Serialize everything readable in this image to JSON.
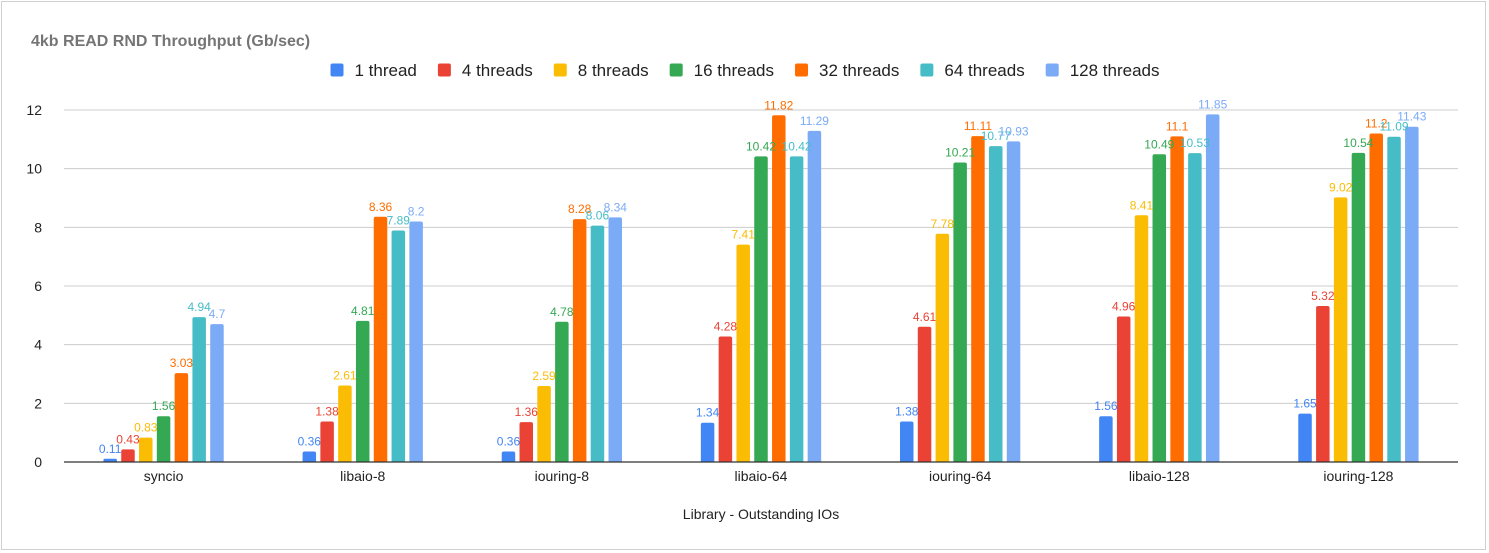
{
  "chart_data": {
    "type": "bar",
    "title": "4kb READ RND  Throughput (Gb/sec)",
    "xlabel": "Library - Outstanding IOs",
    "ylabel": "",
    "ylim": [
      0,
      12
    ],
    "yticks": [
      0,
      2,
      4,
      6,
      8,
      10,
      12
    ],
    "grid": true,
    "legend_position": "top",
    "categories": [
      "syncio",
      "libaio-8",
      "iouring-8",
      "libaio-64",
      "iouring-64",
      "libaio-128",
      "iouring-128"
    ],
    "series": [
      {
        "name": "1 thread",
        "color": "#4285f4",
        "values": [
          0.11,
          0.36,
          0.36,
          1.34,
          1.38,
          1.56,
          1.65
        ],
        "labels": [
          "0.11",
          "0.36",
          "0.36",
          "1.34",
          "1.38",
          "1.56",
          "1.65"
        ]
      },
      {
        "name": "4 threads",
        "color": "#ea4335",
        "values": [
          0.43,
          1.38,
          1.36,
          4.28,
          4.61,
          4.96,
          5.32
        ],
        "labels": [
          "0.43",
          "1.38",
          "1.36",
          "4.28",
          "4.61",
          "4.96",
          "5.32"
        ]
      },
      {
        "name": "8 threads",
        "color": "#fbbc04",
        "values": [
          0.83,
          2.61,
          2.59,
          7.41,
          7.78,
          8.41,
          9.02
        ],
        "labels": [
          "0.83",
          "2.61",
          "2.59",
          "7.41",
          "7.78",
          "8.41",
          "9.02"
        ]
      },
      {
        "name": "16 threads",
        "color": "#34a853",
        "values": [
          1.56,
          4.81,
          4.78,
          10.42,
          10.21,
          10.49,
          10.54
        ],
        "labels": [
          "1.56",
          "4.81",
          "4.78",
          "10.42",
          "10.21",
          "10.49",
          "10.54"
        ]
      },
      {
        "name": "32 threads",
        "color": "#ff6d01",
        "values": [
          3.03,
          8.36,
          8.28,
          11.82,
          11.11,
          11.1,
          11.2
        ],
        "labels": [
          "3.03",
          "8.36",
          "8.28",
          "11.82",
          "11.11",
          "11.1",
          "11.2"
        ]
      },
      {
        "name": "64 threads",
        "color": "#46bdc6",
        "values": [
          4.94,
          7.89,
          8.06,
          10.42,
          10.77,
          10.53,
          11.09
        ],
        "labels": [
          "4.94",
          "7.89",
          "8.06",
          "10.42",
          "10.77",
          "10.53",
          "11.09"
        ]
      },
      {
        "name": "128 threads",
        "color": "#7baaf7",
        "values": [
          4.7,
          8.2,
          8.34,
          11.29,
          10.93,
          11.85,
          11.43
        ],
        "labels": [
          "4.7",
          "8.2",
          "8.34",
          "11.29",
          "10.93",
          "11.85",
          "11.43"
        ]
      }
    ]
  }
}
